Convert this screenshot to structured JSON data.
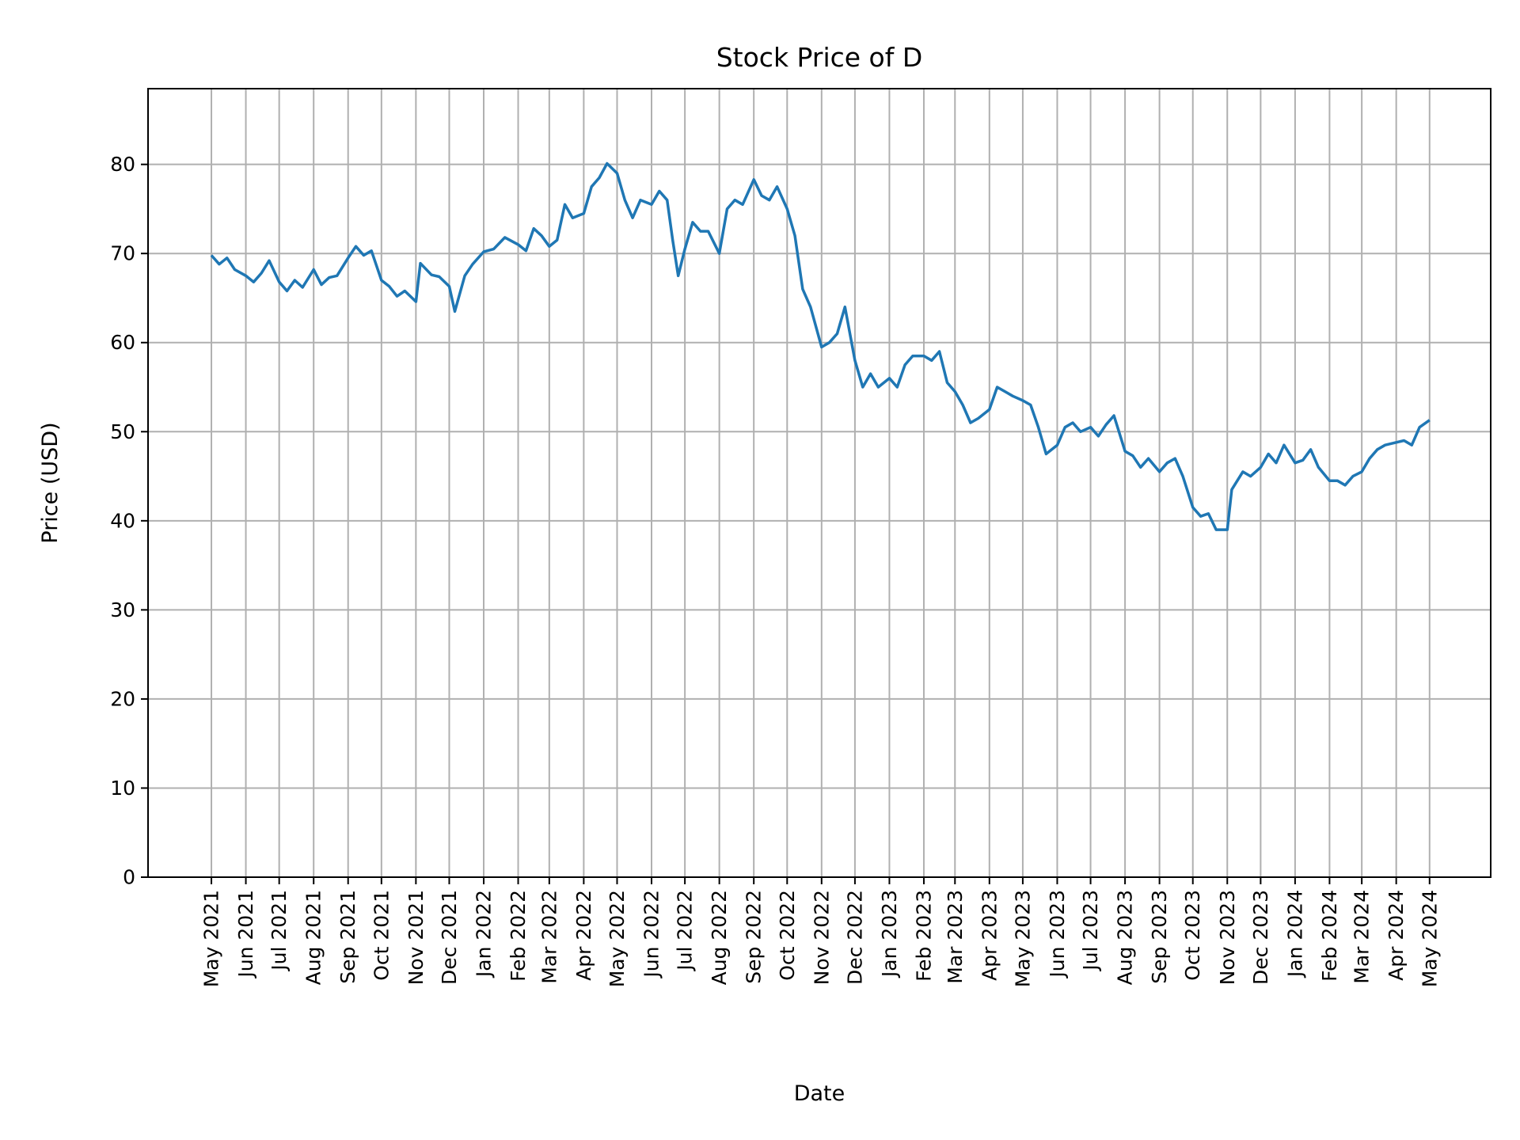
{
  "chart_data": {
    "type": "line",
    "title": "Stock Price of D",
    "xlabel": "Date",
    "ylabel": "Price (USD)",
    "ylim": [
      0,
      88.5
    ],
    "xlim": [
      "2021-03-05",
      "2024-06-25"
    ],
    "grid": true,
    "color": "#1f77b4",
    "yticks": [
      0,
      10,
      20,
      30,
      40,
      50,
      60,
      70,
      80
    ],
    "xticks": [
      {
        "date": "2021-05-01",
        "label": "May 2021"
      },
      {
        "date": "2021-06-01",
        "label": "Jun 2021"
      },
      {
        "date": "2021-07-01",
        "label": "Jul 2021"
      },
      {
        "date": "2021-08-01",
        "label": "Aug 2021"
      },
      {
        "date": "2021-09-01",
        "label": "Sep 2021"
      },
      {
        "date": "2021-10-01",
        "label": "Oct 2021"
      },
      {
        "date": "2021-11-01",
        "label": "Nov 2021"
      },
      {
        "date": "2021-12-01",
        "label": "Dec 2021"
      },
      {
        "date": "2022-01-01",
        "label": "Jan 2022"
      },
      {
        "date": "2022-02-01",
        "label": "Feb 2022"
      },
      {
        "date": "2022-03-01",
        "label": "Mar 2022"
      },
      {
        "date": "2022-04-01",
        "label": "Apr 2022"
      },
      {
        "date": "2022-05-01",
        "label": "May 2022"
      },
      {
        "date": "2022-06-01",
        "label": "Jun 2022"
      },
      {
        "date": "2022-07-01",
        "label": "Jul 2022"
      },
      {
        "date": "2022-08-01",
        "label": "Aug 2022"
      },
      {
        "date": "2022-09-01",
        "label": "Sep 2022"
      },
      {
        "date": "2022-10-01",
        "label": "Oct 2022"
      },
      {
        "date": "2022-11-01",
        "label": "Nov 2022"
      },
      {
        "date": "2022-12-01",
        "label": "Dec 2022"
      },
      {
        "date": "2023-01-01",
        "label": "Jan 2023"
      },
      {
        "date": "2023-02-01",
        "label": "Feb 2023"
      },
      {
        "date": "2023-03-01",
        "label": "Mar 2023"
      },
      {
        "date": "2023-04-01",
        "label": "Apr 2023"
      },
      {
        "date": "2023-05-01",
        "label": "May 2023"
      },
      {
        "date": "2023-06-01",
        "label": "Jun 2023"
      },
      {
        "date": "2023-07-01",
        "label": "Jul 2023"
      },
      {
        "date": "2023-08-01",
        "label": "Aug 2023"
      },
      {
        "date": "2023-09-01",
        "label": "Sep 2023"
      },
      {
        "date": "2023-10-01",
        "label": "Oct 2023"
      },
      {
        "date": "2023-11-01",
        "label": "Nov 2023"
      },
      {
        "date": "2023-12-01",
        "label": "Dec 2023"
      },
      {
        "date": "2024-01-01",
        "label": "Jan 2024"
      },
      {
        "date": "2024-02-01",
        "label": "Feb 2024"
      },
      {
        "date": "2024-03-01",
        "label": "Mar 2024"
      },
      {
        "date": "2024-04-01",
        "label": "Apr 2024"
      },
      {
        "date": "2024-05-01",
        "label": "May 2024"
      }
    ],
    "x": [
      "2021-05-01",
      "2021-05-08",
      "2021-05-15",
      "2021-05-22",
      "2021-06-01",
      "2021-06-08",
      "2021-06-15",
      "2021-06-22",
      "2021-07-01",
      "2021-07-08",
      "2021-07-15",
      "2021-07-22",
      "2021-08-01",
      "2021-08-08",
      "2021-08-15",
      "2021-08-22",
      "2021-09-01",
      "2021-09-08",
      "2021-09-15",
      "2021-09-22",
      "2021-10-01",
      "2021-10-08",
      "2021-10-15",
      "2021-10-22",
      "2021-11-01",
      "2021-11-05",
      "2021-11-15",
      "2021-11-22",
      "2021-12-01",
      "2021-12-06",
      "2021-12-15",
      "2021-12-22",
      "2022-01-01",
      "2022-01-10",
      "2022-01-20",
      "2022-02-01",
      "2022-02-08",
      "2022-02-15",
      "2022-02-22",
      "2022-03-01",
      "2022-03-08",
      "2022-03-15",
      "2022-03-22",
      "2022-04-01",
      "2022-04-08",
      "2022-04-15",
      "2022-04-22",
      "2022-05-01",
      "2022-05-08",
      "2022-05-15",
      "2022-05-22",
      "2022-06-01",
      "2022-06-08",
      "2022-06-15",
      "2022-06-20",
      "2022-06-25",
      "2022-07-01",
      "2022-07-08",
      "2022-07-15",
      "2022-07-22",
      "2022-08-01",
      "2022-08-08",
      "2022-08-15",
      "2022-08-22",
      "2022-09-01",
      "2022-09-08",
      "2022-09-15",
      "2022-09-22",
      "2022-10-01",
      "2022-10-08",
      "2022-10-15",
      "2022-10-22",
      "2022-11-01",
      "2022-11-08",
      "2022-11-15",
      "2022-11-22",
      "2022-12-01",
      "2022-12-08",
      "2022-12-15",
      "2022-12-22",
      "2023-01-01",
      "2023-01-08",
      "2023-01-15",
      "2023-01-22",
      "2023-02-01",
      "2023-02-08",
      "2023-02-15",
      "2023-02-22",
      "2023-03-01",
      "2023-03-08",
      "2023-03-15",
      "2023-03-22",
      "2023-04-01",
      "2023-04-08",
      "2023-04-15",
      "2023-04-22",
      "2023-05-01",
      "2023-05-08",
      "2023-05-15",
      "2023-05-22",
      "2023-06-01",
      "2023-06-08",
      "2023-06-15",
      "2023-06-22",
      "2023-07-01",
      "2023-07-08",
      "2023-07-15",
      "2023-07-22",
      "2023-08-01",
      "2023-08-08",
      "2023-08-15",
      "2023-08-22",
      "2023-09-01",
      "2023-09-08",
      "2023-09-15",
      "2023-09-22",
      "2023-10-01",
      "2023-10-08",
      "2023-10-15",
      "2023-10-22",
      "2023-11-01",
      "2023-11-05",
      "2023-11-15",
      "2023-11-22",
      "2023-12-01",
      "2023-12-08",
      "2023-12-15",
      "2023-12-22",
      "2024-01-01",
      "2024-01-08",
      "2024-01-15",
      "2024-01-22",
      "2024-02-01",
      "2024-02-08",
      "2024-02-15",
      "2024-02-22",
      "2024-03-01",
      "2024-03-08",
      "2024-03-15",
      "2024-03-22",
      "2024-04-01",
      "2024-04-08",
      "2024-04-15",
      "2024-04-22",
      "2024-05-01"
    ],
    "y": [
      69.8,
      68.8,
      69.5,
      68.2,
      67.5,
      66.8,
      67.8,
      69.2,
      66.8,
      65.8,
      67.0,
      66.2,
      68.2,
      66.5,
      67.3,
      67.5,
      69.5,
      70.8,
      69.8,
      70.3,
      67.0,
      66.3,
      65.2,
      65.8,
      64.6,
      68.9,
      67.6,
      67.4,
      66.3,
      63.5,
      67.5,
      68.8,
      70.2,
      70.5,
      71.8,
      71.0,
      70.3,
      72.8,
      72.0,
      70.8,
      71.5,
      75.5,
      74.0,
      74.5,
      77.5,
      78.5,
      80.1,
      79.0,
      76.0,
      74.0,
      76.0,
      75.5,
      77.0,
      76.0,
      71.5,
      67.5,
      70.5,
      73.5,
      72.5,
      72.5,
      70.0,
      75.0,
      76.0,
      75.5,
      78.3,
      76.5,
      76.0,
      77.5,
      75.0,
      72.0,
      66.0,
      64.0,
      59.5,
      60.0,
      61.0,
      64.0,
      58.0,
      55.0,
      56.5,
      55.0,
      56.0,
      55.0,
      57.5,
      58.5,
      58.5,
      58.0,
      59.0,
      55.5,
      54.5,
      53.0,
      51.0,
      51.5,
      52.5,
      55.0,
      54.5,
      54.0,
      53.5,
      53.0,
      50.5,
      47.5,
      48.5,
      50.5,
      51.0,
      50.0,
      50.5,
      49.5,
      50.8,
      51.8,
      47.8,
      47.3,
      46.0,
      47.0,
      45.5,
      46.5,
      47.0,
      45.0,
      41.5,
      40.5,
      40.8,
      39.0,
      39.0,
      43.5,
      45.5,
      45.0,
      46.0,
      47.5,
      46.5,
      48.5,
      46.5,
      46.8,
      48.0,
      46.0,
      44.5,
      44.5,
      44.0,
      45.0,
      45.5,
      47.0,
      48.0,
      48.5,
      48.8,
      49.0,
      48.5,
      50.5,
      51.3
    ]
  }
}
